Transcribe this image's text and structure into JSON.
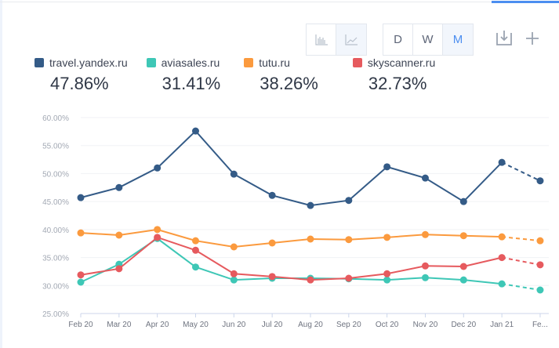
{
  "toolbar": {
    "chart_types": [
      "bar-chart-icon",
      "line-chart-icon"
    ],
    "periods": [
      "D",
      "W",
      "M"
    ],
    "active_period": "M"
  },
  "legend": [
    {
      "name": "travel.yandex.ru",
      "value": "47.86%",
      "color": "#345b87"
    },
    {
      "name": "aviasales.ru",
      "value": "31.41%",
      "color": "#3ec7b6"
    },
    {
      "name": "tutu.ru",
      "value": "38.26%",
      "color": "#fb9a3e"
    },
    {
      "name": "skyscanner.ru",
      "value": "32.73%",
      "color": "#e65a5e"
    }
  ],
  "chart_data": {
    "type": "line",
    "x": [
      "Feb 20",
      "Mar 20",
      "Apr 20",
      "May 20",
      "Jun 20",
      "Jul 20",
      "Aug 20",
      "Sep 20",
      "Oct 20",
      "Nov 20",
      "Dec 20",
      "Jan 21",
      "Fe..."
    ],
    "ylim": [
      25,
      60
    ],
    "yticks": [
      "25.00%",
      "30.00%",
      "35.00%",
      "40.00%",
      "45.00%",
      "50.00%",
      "55.00%",
      "60.00%"
    ],
    "dashed_last_segment": true,
    "series": [
      {
        "name": "travel.yandex.ru",
        "color": "#345b87",
        "values": [
          45.7,
          47.5,
          51.0,
          57.6,
          49.9,
          46.1,
          44.3,
          45.2,
          51.2,
          49.2,
          45.0,
          52.0,
          48.7
        ]
      },
      {
        "name": "tutu.ru",
        "color": "#fb9a3e",
        "values": [
          39.4,
          39.0,
          40.0,
          38.0,
          36.9,
          37.6,
          38.3,
          38.2,
          38.6,
          39.1,
          38.9,
          38.7,
          38.0
        ]
      },
      {
        "name": "aviasales.ru",
        "color": "#3ec7b6",
        "values": [
          30.6,
          33.8,
          38.4,
          33.3,
          31.0,
          31.3,
          31.3,
          31.2,
          31.0,
          31.4,
          31.0,
          30.3,
          29.2
        ]
      },
      {
        "name": "skyscanner.ru",
        "color": "#e65a5e",
        "values": [
          31.9,
          33.0,
          38.6,
          36.3,
          32.1,
          31.6,
          31.0,
          31.3,
          32.1,
          33.5,
          33.4,
          35.0,
          33.7
        ]
      }
    ]
  }
}
